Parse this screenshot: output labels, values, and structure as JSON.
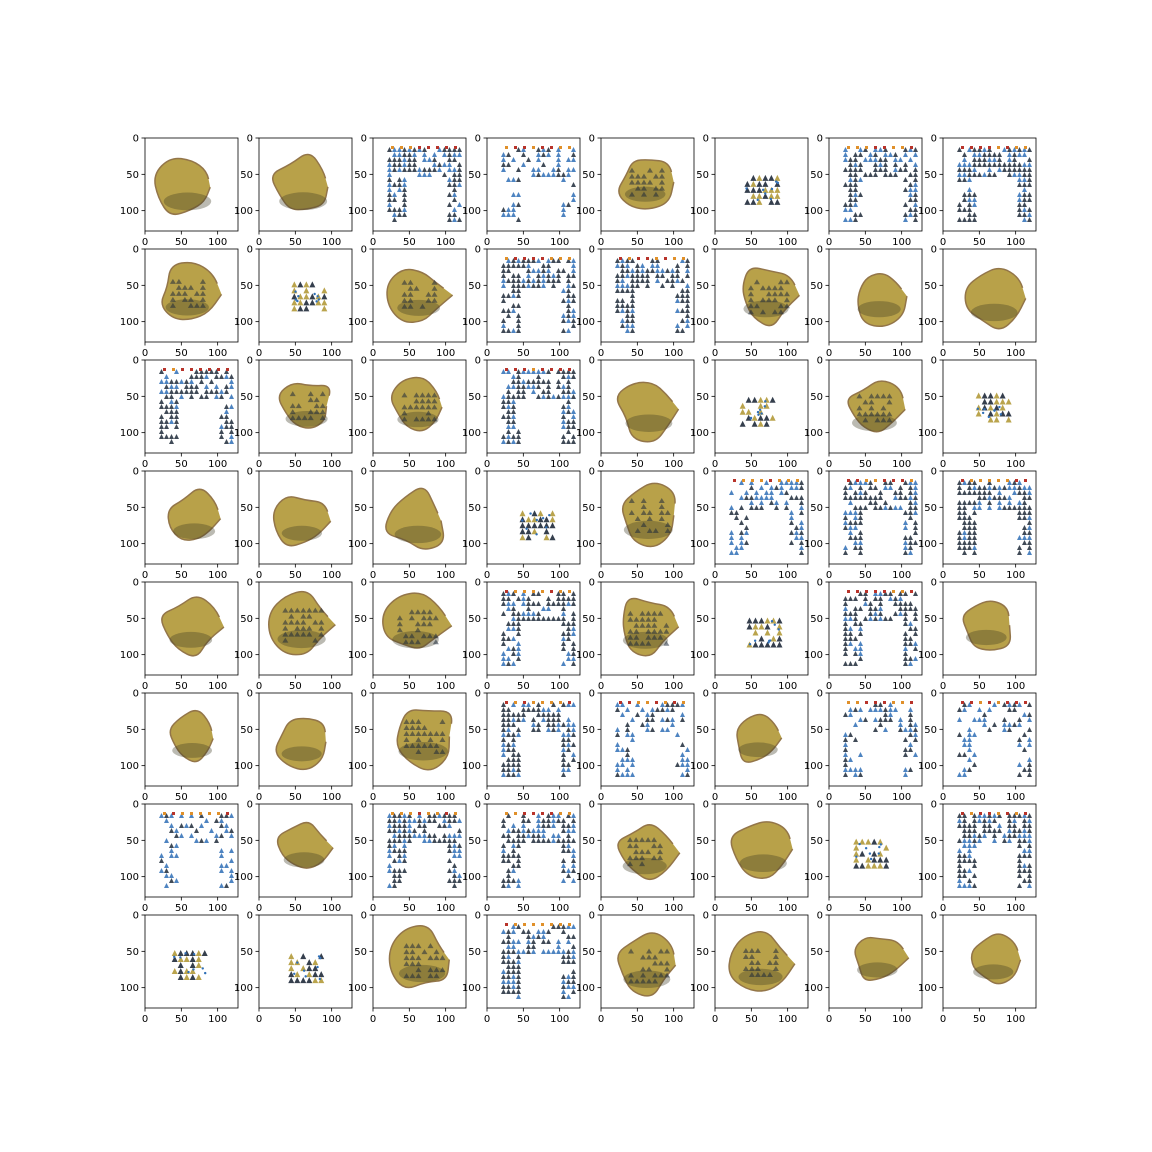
{
  "chart_data": {
    "type": "image-grid",
    "rows": 8,
    "cols": 8,
    "panel_count": 64,
    "xlim": [
      0,
      128
    ],
    "ylim": [
      128,
      0
    ],
    "x_ticks": [
      0,
      50,
      100
    ],
    "y_ticks": [
      0,
      50,
      100
    ],
    "x_tick_labels": [
      "0",
      "50",
      "100"
    ],
    "y_tick_labels": [
      "0",
      "50",
      "100"
    ],
    "title": "",
    "xlabel": "",
    "ylabel": "",
    "grid": false,
    "colors": {
      "blob_main": "#b39a3a",
      "blob_dark": "#3b3a22",
      "blob_edge": "#8a6a3a",
      "grid_pattern_dark": "#1f2a3a",
      "grid_pattern_blue": "#2f6fb6",
      "accent_orange": "#e0902a",
      "accent_red": "#b8332a"
    },
    "panels": [
      "blob",
      "blob",
      "grid",
      "grid-sparse",
      "blob-pattern",
      "cluster",
      "grid",
      "grid",
      "blob-pattern",
      "cluster",
      "blob-pattern",
      "grid",
      "grid",
      "blob-pattern",
      "blob",
      "blob",
      "grid",
      "blob-pattern",
      "blob-pattern",
      "grid",
      "blob",
      "cluster",
      "blob-pattern",
      "cluster",
      "blob",
      "blob",
      "blob",
      "cluster",
      "blob-pattern",
      "grid-sparse",
      "grid",
      "grid",
      "blob",
      "blob-pattern",
      "blob-pattern",
      "grid",
      "blob-pattern",
      "cluster",
      "grid",
      "blob",
      "blob",
      "blob",
      "blob-pattern",
      "grid",
      "grid-sparse",
      "blob",
      "grid-sparse",
      "grid-sparse",
      "grid-sparse",
      "blob",
      "grid",
      "grid",
      "blob-pattern",
      "blob",
      "cluster",
      "grid",
      "cluster",
      "cluster",
      "blob-pattern",
      "grid",
      "blob-pattern",
      "blob-pattern",
      "blob",
      "blob"
    ]
  }
}
